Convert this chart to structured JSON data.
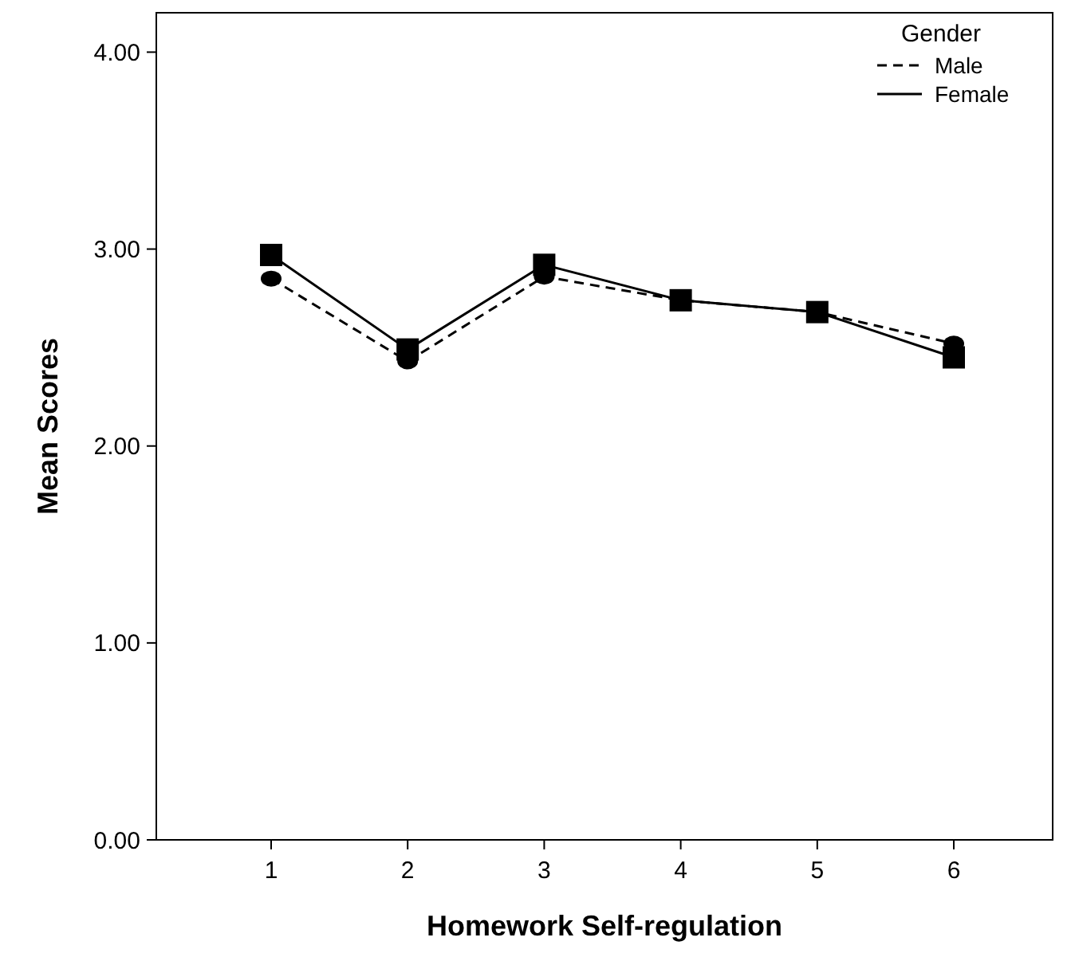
{
  "chart_data": {
    "type": "line",
    "xlabel": "Homework Self-regulation",
    "ylabel": "Mean Scores",
    "legend_title": "Gender",
    "categories": [
      "1",
      "2",
      "3",
      "4",
      "5",
      "6"
    ],
    "series": [
      {
        "name": "Male",
        "color": "#000000",
        "line_style": "dashed",
        "marker": "circle",
        "values": [
          2.85,
          2.43,
          2.86,
          2.74,
          2.68,
          2.52
        ]
      },
      {
        "name": "Female",
        "color": "#000000",
        "line_style": "solid",
        "marker": "square",
        "values": [
          2.97,
          2.49,
          2.92,
          2.74,
          2.68,
          2.45
        ]
      }
    ],
    "ylim": [
      0,
      4.2
    ],
    "yticks": [
      {
        "value": 0,
        "label": "0.00"
      },
      {
        "value": 1,
        "label": "1.00"
      },
      {
        "value": 2,
        "label": "2.00"
      },
      {
        "value": 3,
        "label": "3.00"
      },
      {
        "value": 4,
        "label": "4.00"
      }
    ],
    "grid": false,
    "legend": "top right"
  }
}
